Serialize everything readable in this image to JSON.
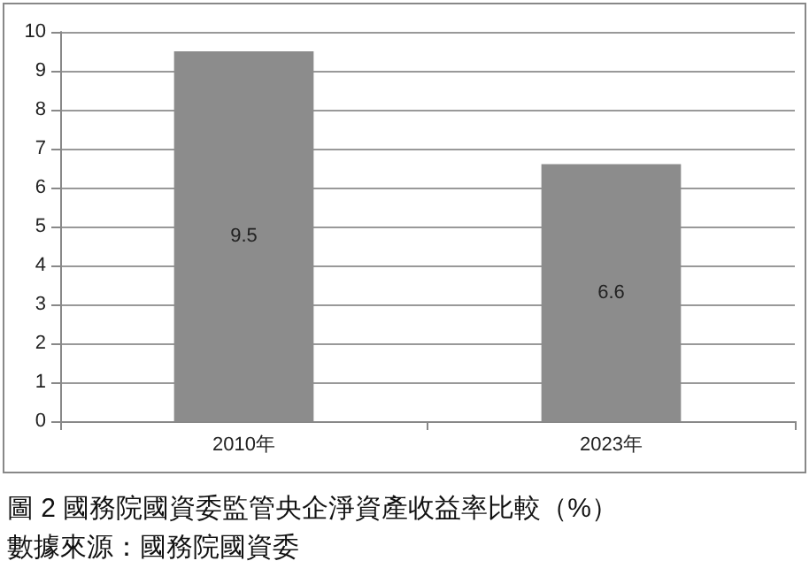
{
  "chart_data": {
    "type": "bar",
    "title": "圖 2 國務院國資委監管央企淨資產收益率比較（%）",
    "annotations": [
      "數據來源：國務院國資委"
    ],
    "categories": [
      "2010年",
      "2023年"
    ],
    "values": [
      9.5,
      6.6
    ],
    "color": "#8c8c8c",
    "ylim": [
      0,
      10
    ],
    "yticks": [
      0,
      1,
      2,
      3,
      4,
      5,
      6,
      7,
      8,
      9,
      10
    ],
    "grid": "y",
    "data_labels": true
  }
}
